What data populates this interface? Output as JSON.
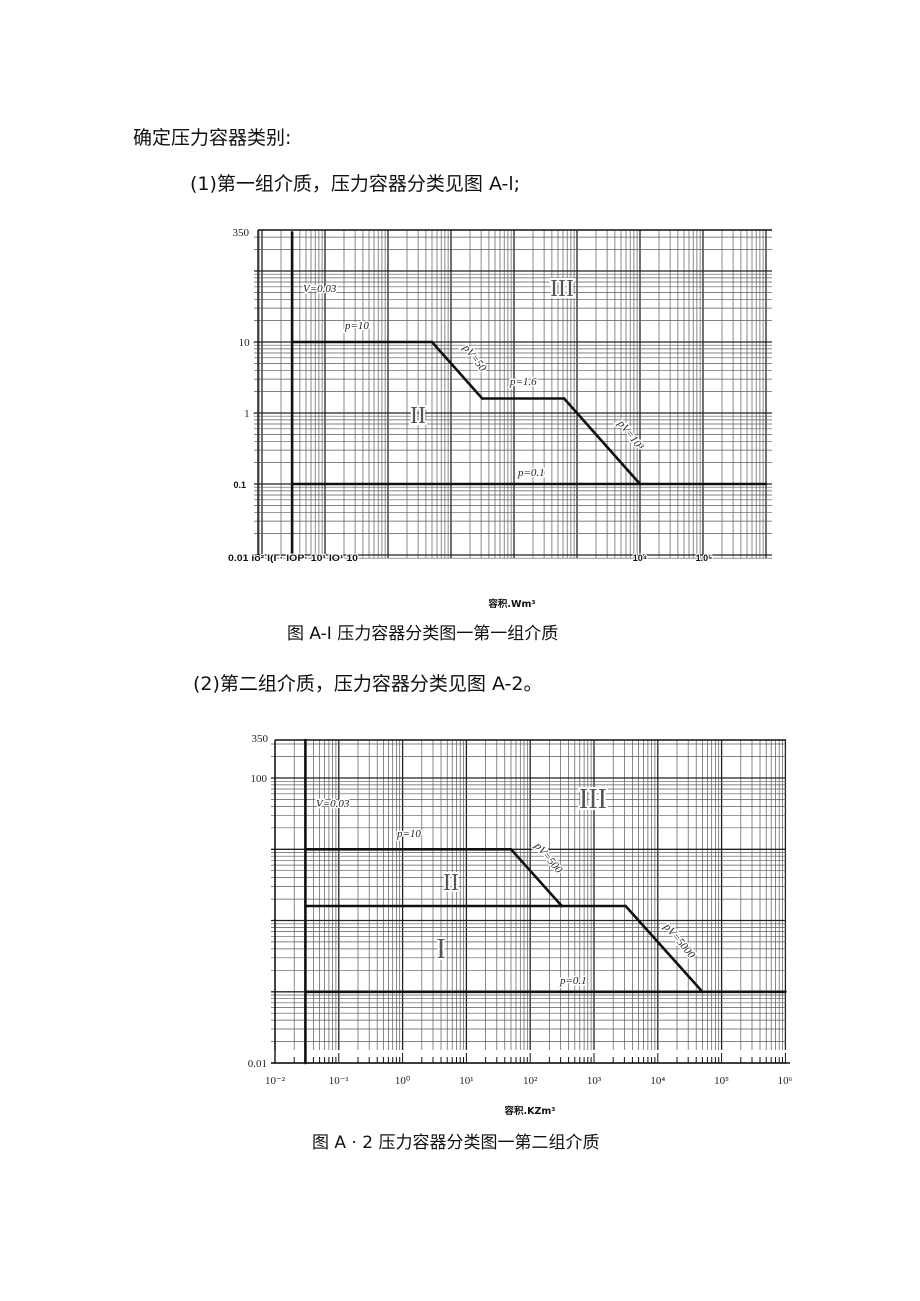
{
  "document": {
    "intro": "确定压力容器类别:",
    "item1": "(1)第一组介质，压力容器分类见图 A-l;",
    "item2": "(2)第二组介质，压力容器分类见图 A-2。"
  },
  "figures": [
    {
      "caption": "图 A-I 压力容器分类图一第一组介质"
    },
    {
      "caption": "图 A · 2 压力容器分类图一第二组介质"
    }
  ],
  "chart_data": [
    {
      "type": "line",
      "xscale": "log",
      "yscale": "log",
      "xlim": [
        0.01,
        1000000
      ],
      "ylim": [
        0.01,
        350
      ],
      "grid": true,
      "xlabel": "容积.Wm³",
      "y_tick_labels": [
        "350",
        "10 ·",
        "1 ·",
        "0.1"
      ],
      "x_tick_labels": [
        "0.01 io² I(Γ· IOP· 10¹ IO¹ 10",
        "10⁴",
        "1.0⁵"
      ],
      "regions": [
        "III",
        "II"
      ],
      "series": [
        {
          "name": "V=0.03",
          "points": [
            [
              0.03,
              0.01
            ],
            [
              0.03,
              350
            ]
          ]
        },
        {
          "name": "p=10",
          "points": [
            [
              0.03,
              10
            ],
            [
              5,
              10
            ]
          ]
        },
        {
          "name": "pV=50",
          "points": [
            [
              5,
              10
            ],
            [
              31.25,
              1.6
            ]
          ]
        },
        {
          "name": "p=1.6",
          "points": [
            [
              31.25,
              1.6
            ],
            [
              625,
              1.6
            ]
          ]
        },
        {
          "name": "pV=10³",
          "points": [
            [
              625,
              1.6
            ],
            [
              10000,
              0.1
            ]
          ]
        },
        {
          "name": "p=0.1",
          "points": [
            [
              0.03,
              0.1
            ],
            [
              1000000,
              0.1
            ]
          ]
        }
      ]
    },
    {
      "type": "line",
      "xscale": "log",
      "yscale": "log",
      "xlim": [
        0.01,
        1000000
      ],
      "ylim": [
        0.01,
        350
      ],
      "grid": true,
      "xlabel": "容积.KZm³",
      "y_tick_labels": [
        "350",
        "100",
        "0.01"
      ],
      "x_tick_labels": [
        "10⁻²",
        "10⁻¹",
        "10⁰",
        "10¹",
        "10²",
        "10³",
        "10⁴",
        "10⁵",
        "10⁶"
      ],
      "regions": [
        "III",
        "II",
        "I"
      ],
      "series": [
        {
          "name": "V=0.03",
          "points": [
            [
              0.03,
              0.01
            ],
            [
              0.03,
              350
            ]
          ]
        },
        {
          "name": "p=10",
          "points": [
            [
              0.03,
              10
            ],
            [
              50,
              10
            ]
          ]
        },
        {
          "name": "pV=500",
          "points": [
            [
              50,
              10
            ],
            [
              312.5,
              1.6
            ]
          ]
        },
        {
          "points": [
            [
              0.03,
              1.6
            ],
            [
              3125,
              1.6
            ]
          ]
        },
        {
          "name": "pV=5000",
          "points": [
            [
              3125,
              1.6
            ],
            [
              50000,
              0.1
            ]
          ]
        },
        {
          "name": "p=0.1",
          "points": [
            [
              0.03,
              0.1
            ],
            [
              1000000,
              0.1
            ]
          ]
        }
      ]
    }
  ]
}
